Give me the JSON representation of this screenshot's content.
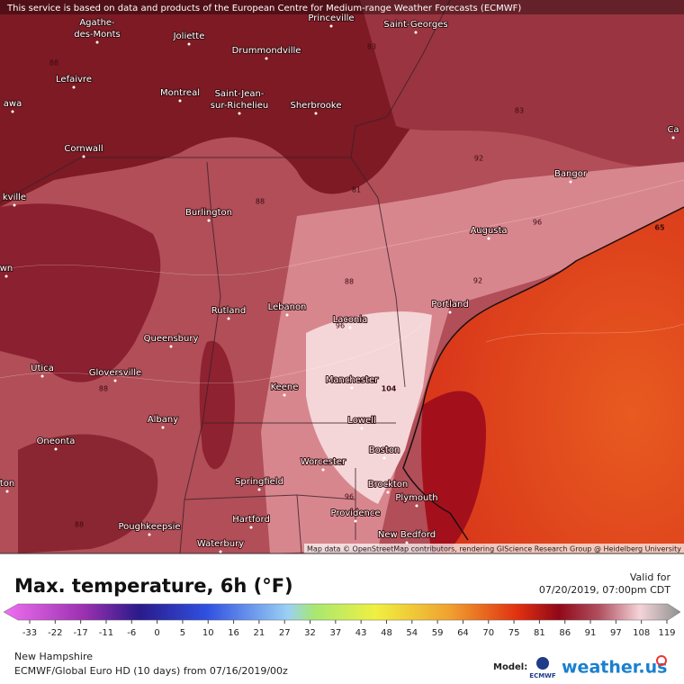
{
  "header": {
    "notice": "This service is based on data and products of the European Centre for Medium-range Weather Forecasts (ECMWF)"
  },
  "map": {
    "labels": [
      [
        "Agathe-",
        "des-Monts"
      ],
      [
        "Joliette"
      ],
      [
        "Princeville"
      ],
      [
        "Saint-Georges"
      ],
      [
        "Drummondville"
      ],
      [
        "Lefaivre"
      ],
      [
        "awa"
      ],
      [
        "Montreal"
      ],
      [
        "Saint-Jean-",
        "sur-Richelieu"
      ],
      [
        "Sherbrooke"
      ],
      [
        "Cornwall"
      ],
      [
        "kville"
      ],
      [
        "Burlington"
      ],
      [
        "Bangor"
      ],
      [
        "Augusta"
      ],
      [
        "Portland"
      ],
      [
        "Laconia"
      ],
      [
        "Lebanon"
      ],
      [
        "Rutland"
      ],
      [
        "Queensbury"
      ],
      [
        "Utica"
      ],
      [
        "Gloversville"
      ],
      [
        "Keene"
      ],
      [
        "Manchester"
      ],
      [
        "Lowell"
      ],
      [
        "Albany"
      ],
      [
        "Oneonta"
      ],
      [
        "Boston"
      ],
      [
        "Worcester"
      ],
      [
        "Brockton"
      ],
      [
        "Plymouth"
      ],
      [
        "Springfield"
      ],
      [
        "Providence"
      ],
      [
        "Poughkeepsie"
      ],
      [
        "Hartford"
      ],
      [
        "Waterbury"
      ],
      [
        "New Bedford"
      ],
      [
        "wn"
      ],
      [
        "ton"
      ],
      [
        "Ca"
      ]
    ],
    "contour_labels": [
      88,
      83,
      83,
      92,
      81,
      88,
      96,
      92,
      88,
      96,
      104,
      88,
      96,
      88,
      65
    ],
    "attribution": "Map data © OpenStreetMap contributors, rendering GIScience Research Group @ Heidelberg University"
  },
  "footer": {
    "title": "Max. temperature, 6h (°F)",
    "valid_label": "Valid for",
    "valid_time": "07/20/2019, 07:00pm CDT",
    "legend_ticks": [
      -33,
      -22,
      -17,
      -11,
      -6,
      0,
      5,
      10,
      16,
      21,
      27,
      32,
      37,
      43,
      48,
      54,
      59,
      64,
      70,
      75,
      81,
      86,
      91,
      97,
      108,
      119
    ],
    "region": "New Hampshire",
    "model_run": "ECMWF/Global Euro HD (10 days) from 07/16/2019/00z",
    "model_label": "Model:",
    "model_name": "ECMWF",
    "brand": "weather.us"
  }
}
